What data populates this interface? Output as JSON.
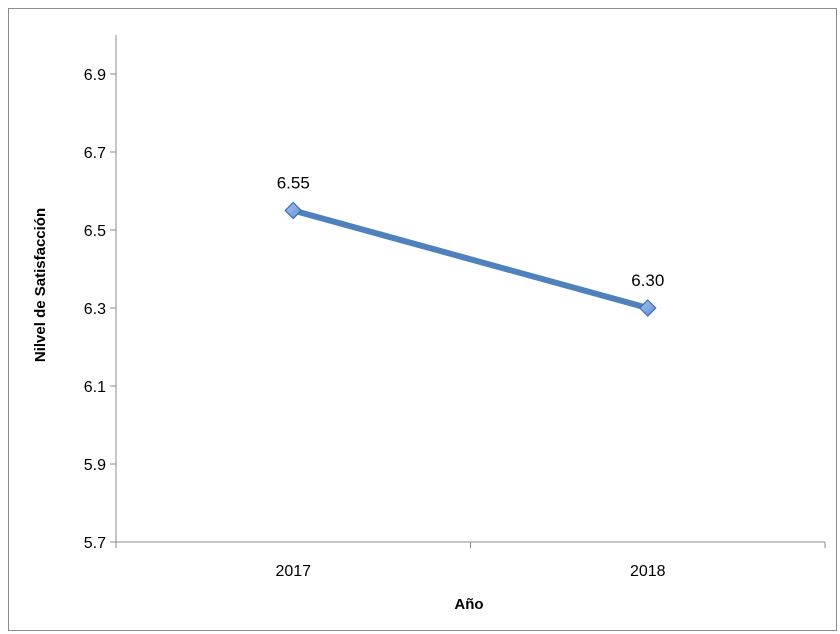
{
  "chart_data": {
    "type": "line",
    "title": "",
    "xlabel": "Año",
    "ylabel": "Nilvel de Satisfacción",
    "categories": [
      "2017",
      "2018"
    ],
    "series": [
      {
        "values": [
          6.55,
          6.3
        ],
        "data_labels": [
          "6.55",
          "6.30"
        ],
        "color": "#4F81BD",
        "marker": "diamond"
      }
    ],
    "ylim": [
      5.7,
      7.0
    ],
    "yticks": [
      5.7,
      5.9,
      6.1,
      6.3,
      6.5,
      6.7,
      6.9
    ],
    "ytick_labels": [
      "5.7",
      "5.9",
      "6.1",
      "6.3",
      "6.5",
      "6.7",
      "6.9"
    ],
    "grid": false,
    "legend": "none"
  }
}
